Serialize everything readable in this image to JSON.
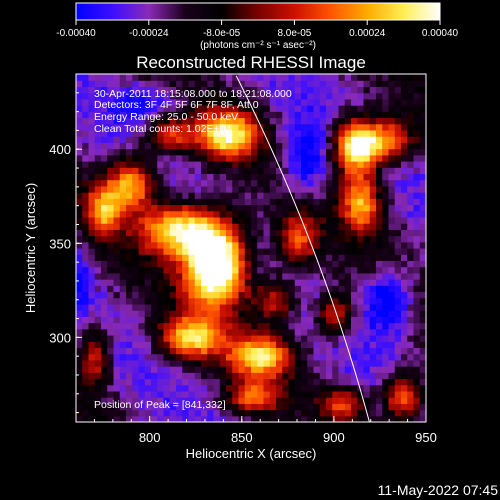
{
  "chart_data": {
    "type": "heatmap",
    "title": "Reconstructed RHESSI Image",
    "xlabel": "Heliocentric X (arcsec)",
    "ylabel": "Heliocentric Y (arcsec)",
    "xlim": [
      760,
      950
    ],
    "ylim": [
      255,
      440
    ],
    "x_ticks": [
      800,
      850,
      900,
      950
    ],
    "y_ticks": [
      300,
      350,
      400
    ],
    "x_tick_labels": [
      "800",
      "850",
      "900",
      "950"
    ],
    "y_tick_labels": [
      "300",
      "350",
      "400"
    ],
    "colorbar": {
      "range": [
        -0.0004,
        0.0004
      ],
      "ticks": [
        -0.0004,
        -0.00024,
        -8e-05,
        8e-05,
        0.00024,
        0.0004
      ],
      "tick_labels": [
        "-0.00040",
        "-0.00024",
        "-8.0e-05",
        "8.0e-05",
        "0.00024",
        "0.00040"
      ],
      "unit_label": "(photons cm⁻² s⁻¹ asec⁻²)",
      "stops": [
        "#0000ff",
        "#3c0fff",
        "#8a2ab8",
        "#1a001a",
        "#000000",
        "#7a0000",
        "#cc1100",
        "#ff5500",
        "#ffaa00",
        "#ffee55",
        "#ffffff"
      ]
    },
    "info_lines": [
      "30-Apr-2011 18:15:08.000 to 18:21:08.000",
      "Detectors: 3F 4F 5F 6F 7F 8F, Att 0",
      "Energy Range: 25.0 - 50.0 keV",
      "Clean     Total counts: 1.02E+04"
    ],
    "peak_label": "Position of Peak = [841,332]",
    "peak": [
      841,
      332
    ],
    "solar_limb": {
      "center": [
        0,
        0
      ],
      "radius_arcsec": 954
    },
    "hotspots": [
      {
        "x": 836,
        "y": 340,
        "amp": 1.0,
        "sx": 12,
        "sy": 16
      },
      {
        "x": 815,
        "y": 358,
        "amp": 0.65,
        "sx": 14,
        "sy": 10
      },
      {
        "x": 790,
        "y": 382,
        "amp": 0.6,
        "sx": 9,
        "sy": 10
      },
      {
        "x": 775,
        "y": 368,
        "amp": 0.5,
        "sx": 7,
        "sy": 9
      },
      {
        "x": 842,
        "y": 408,
        "amp": 0.65,
        "sx": 12,
        "sy": 9
      },
      {
        "x": 810,
        "y": 408,
        "amp": 0.45,
        "sx": 9,
        "sy": 7
      },
      {
        "x": 912,
        "y": 402,
        "amp": 0.85,
        "sx": 9,
        "sy": 10
      },
      {
        "x": 930,
        "y": 405,
        "amp": 0.5,
        "sx": 10,
        "sy": 8
      },
      {
        "x": 915,
        "y": 372,
        "amp": 0.55,
        "sx": 8,
        "sy": 11
      },
      {
        "x": 822,
        "y": 300,
        "amp": 0.6,
        "sx": 12,
        "sy": 8
      },
      {
        "x": 860,
        "y": 290,
        "amp": 0.6,
        "sx": 12,
        "sy": 8
      },
      {
        "x": 900,
        "y": 312,
        "amp": 0.45,
        "sx": 7,
        "sy": 8
      },
      {
        "x": 880,
        "y": 352,
        "amp": 0.45,
        "sx": 8,
        "sy": 10
      },
      {
        "x": 938,
        "y": 268,
        "amp": 0.55,
        "sx": 8,
        "sy": 9
      },
      {
        "x": 905,
        "y": 265,
        "amp": 0.4,
        "sx": 8,
        "sy": 6
      },
      {
        "x": 770,
        "y": 290,
        "amp": 0.4,
        "sx": 6,
        "sy": 12
      },
      {
        "x": 868,
        "y": 320,
        "amp": 0.4,
        "sx": 8,
        "sy": 8
      },
      {
        "x": 855,
        "y": 268,
        "amp": 0.45,
        "sx": 10,
        "sy": 6
      }
    ],
    "negative_spots": [
      {
        "x": 885,
        "y": 395,
        "amp": 0.5,
        "sx": 10,
        "sy": 14
      },
      {
        "x": 930,
        "y": 320,
        "amp": 0.6,
        "sx": 9,
        "sy": 12
      },
      {
        "x": 800,
        "y": 425,
        "amp": 0.35,
        "sx": 14,
        "sy": 8
      },
      {
        "x": 760,
        "y": 330,
        "amp": 0.3,
        "sx": 6,
        "sy": 12
      }
    ]
  },
  "footer": {
    "date": "11-May-2022 07:45"
  }
}
